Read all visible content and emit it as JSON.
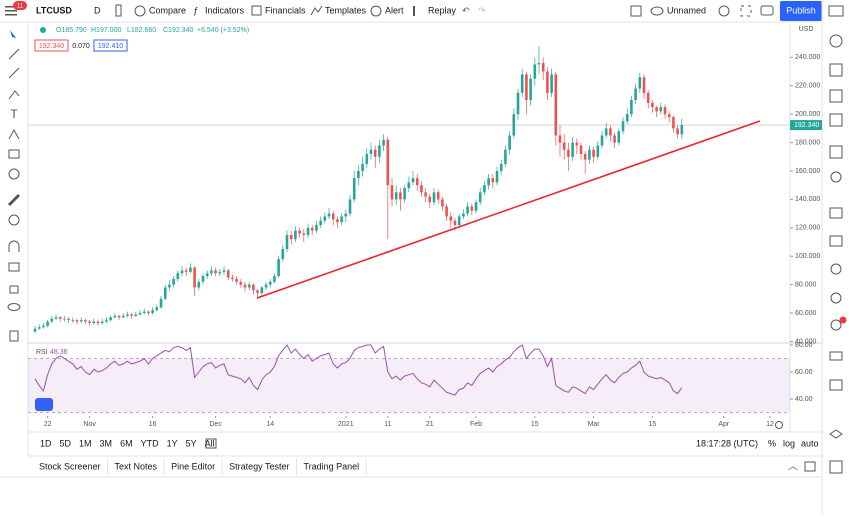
{
  "toolbar": {
    "symbol": "LTCUSD",
    "interval": "D",
    "buttons": [
      "Compare",
      "Indicators",
      "Financials",
      "Templates",
      "Alert",
      "Replay"
    ],
    "layout": "Unnamed",
    "publish": "Publish",
    "badge": "11"
  },
  "chart_data": {
    "type": "candlestick",
    "currency": "USD",
    "legend": {
      "open": "O185.790",
      "high": "H197.000",
      "low": "L182.660",
      "close": "C192.340",
      "change": "+6.540 (+3.52%)"
    },
    "quote": {
      "bid": "192.340",
      "spread": "0.070",
      "ask": "192.410"
    },
    "price_label": "192.340",
    "up_color": "#26a69a",
    "down_color": "#ef5350",
    "xlim": [
      -1.67,
      179.76
    ],
    "xticks": [
      {
        "value": 3,
        "label": "22"
      },
      {
        "value": 13,
        "label": "Nov"
      },
      {
        "value": 28,
        "label": "16"
      },
      {
        "value": 43,
        "label": "Dec"
      },
      {
        "value": 56,
        "label": "14"
      },
      {
        "value": 74,
        "label": "2021"
      },
      {
        "value": 84,
        "label": "11"
      },
      {
        "value": 94,
        "label": "21"
      },
      {
        "value": 105,
        "label": "Feb"
      },
      {
        "value": 119,
        "label": "15"
      },
      {
        "value": 133,
        "label": "Mar"
      },
      {
        "value": 147,
        "label": "15"
      },
      {
        "value": 164,
        "label": "Apr"
      },
      {
        "value": 175,
        "label": "12"
      }
    ],
    "ylim": [
      38.9,
      264.9
    ],
    "yticks": [
      {
        "value": 40,
        "label": "40.000"
      },
      {
        "value": 60,
        "label": "60.000"
      },
      {
        "value": 80,
        "label": "80.000"
      },
      {
        "value": 100,
        "label": "100.000"
      },
      {
        "value": 120,
        "label": "120.000"
      },
      {
        "value": 140,
        "label": "140.000"
      },
      {
        "value": 160,
        "label": "160.000"
      },
      {
        "value": 180,
        "label": "180.000"
      },
      {
        "value": 200,
        "label": "200.000"
      },
      {
        "value": 220,
        "label": "220.000"
      },
      {
        "value": 240,
        "label": "240.000"
      }
    ],
    "ohlc": [
      [
        47,
        51,
        46,
        49
      ],
      [
        49,
        52,
        48,
        50
      ],
      [
        50,
        53,
        49,
        51
      ],
      [
        51,
        55,
        50,
        54
      ],
      [
        54,
        58,
        53,
        56
      ],
      [
        56,
        59,
        55,
        57
      ],
      [
        57,
        58,
        54,
        56
      ],
      [
        56,
        58,
        54,
        56
      ],
      [
        56,
        57,
        53,
        55
      ],
      [
        55,
        57,
        53,
        55
      ],
      [
        55,
        56,
        52,
        54
      ],
      [
        54,
        57,
        53,
        55
      ],
      [
        55,
        56,
        52,
        54
      ],
      [
        54,
        55,
        51,
        53
      ],
      [
        53,
        56,
        52,
        54
      ],
      [
        54,
        55,
        51,
        53
      ],
      [
        53,
        56,
        52,
        54
      ],
      [
        54,
        57,
        53,
        55
      ],
      [
        55,
        58,
        54,
        57
      ],
      [
        57,
        60,
        56,
        58
      ],
      [
        58,
        59,
        55,
        57
      ],
      [
        57,
        60,
        56,
        58
      ],
      [
        58,
        61,
        57,
        59
      ],
      [
        59,
        60,
        56,
        58
      ],
      [
        58,
        61,
        57,
        59
      ],
      [
        59,
        62,
        58,
        60
      ],
      [
        60,
        63,
        59,
        61
      ],
      [
        61,
        62,
        58,
        60
      ],
      [
        60,
        64,
        59,
        62
      ],
      [
        62,
        66,
        61,
        64
      ],
      [
        64,
        72,
        63,
        70
      ],
      [
        70,
        80,
        69,
        78
      ],
      [
        78,
        83,
        76,
        80
      ],
      [
        80,
        86,
        78,
        84
      ],
      [
        84,
        90,
        82,
        88
      ],
      [
        88,
        93,
        86,
        90
      ],
      [
        90,
        92,
        86,
        89
      ],
      [
        89,
        95,
        88,
        92
      ],
      [
        92,
        93,
        72,
        78
      ],
      [
        78,
        84,
        76,
        82
      ],
      [
        82,
        88,
        80,
        86
      ],
      [
        86,
        90,
        84,
        88
      ],
      [
        88,
        93,
        86,
        90
      ],
      [
        90,
        92,
        86,
        88
      ],
      [
        88,
        91,
        86,
        89
      ],
      [
        89,
        93,
        87,
        90
      ],
      [
        90,
        91,
        83,
        85
      ],
      [
        85,
        87,
        82,
        84
      ],
      [
        84,
        86,
        80,
        82
      ],
      [
        82,
        84,
        78,
        80
      ],
      [
        80,
        82,
        75,
        78
      ],
      [
        78,
        82,
        76,
        80
      ],
      [
        80,
        81,
        73,
        76
      ],
      [
        76,
        77,
        70,
        74
      ],
      [
        74,
        79,
        72,
        78
      ],
      [
        78,
        82,
        76,
        80
      ],
      [
        80,
        84,
        78,
        82
      ],
      [
        82,
        88,
        81,
        86
      ],
      [
        86,
        100,
        85,
        98
      ],
      [
        98,
        108,
        96,
        105
      ],
      [
        105,
        118,
        103,
        115
      ],
      [
        115,
        118,
        108,
        112
      ],
      [
        112,
        121,
        110,
        118
      ],
      [
        118,
        120,
        113,
        116
      ],
      [
        116,
        119,
        110,
        115
      ],
      [
        115,
        123,
        113,
        120
      ],
      [
        120,
        122,
        115,
        118
      ],
      [
        118,
        125,
        116,
        122
      ],
      [
        122,
        128,
        120,
        125
      ],
      [
        125,
        131,
        123,
        128
      ],
      [
        128,
        134,
        126,
        130
      ],
      [
        130,
        132,
        122,
        126
      ],
      [
        126,
        128,
        120,
        124
      ],
      [
        124,
        130,
        122,
        128
      ],
      [
        128,
        133,
        124,
        130
      ],
      [
        130,
        143,
        128,
        140
      ],
      [
        140,
        160,
        138,
        155
      ],
      [
        155,
        164,
        150,
        160
      ],
      [
        160,
        170,
        156,
        165
      ],
      [
        165,
        176,
        162,
        172
      ],
      [
        172,
        180,
        168,
        175
      ],
      [
        175,
        178,
        162,
        170
      ],
      [
        170,
        182,
        166,
        178
      ],
      [
        178,
        186,
        174,
        182
      ],
      [
        182,
        184,
        112,
        150
      ],
      [
        150,
        155,
        135,
        140
      ],
      [
        140,
        150,
        136,
        145
      ],
      [
        145,
        148,
        132,
        140
      ],
      [
        140,
        150,
        138,
        148
      ],
      [
        148,
        156,
        145,
        152
      ],
      [
        152,
        160,
        150,
        155
      ],
      [
        155,
        158,
        146,
        150
      ],
      [
        150,
        153,
        142,
        145
      ],
      [
        145,
        148,
        138,
        142
      ],
      [
        142,
        144,
        134,
        138
      ],
      [
        138,
        148,
        136,
        145
      ],
      [
        145,
        147,
        137,
        140
      ],
      [
        140,
        142,
        132,
        135
      ],
      [
        135,
        137,
        125,
        128
      ],
      [
        128,
        131,
        120,
        125
      ],
      [
        125,
        127,
        118,
        122
      ],
      [
        122,
        130,
        120,
        128
      ],
      [
        128,
        133,
        126,
        130
      ],
      [
        130,
        138,
        128,
        135
      ],
      [
        135,
        137,
        129,
        132
      ],
      [
        132,
        140,
        130,
        138
      ],
      [
        138,
        148,
        136,
        145
      ],
      [
        145,
        153,
        143,
        150
      ],
      [
        150,
        158,
        147,
        155
      ],
      [
        155,
        158,
        148,
        152
      ],
      [
        152,
        163,
        150,
        160
      ],
      [
        160,
        168,
        157,
        165
      ],
      [
        165,
        178,
        163,
        175
      ],
      [
        175,
        188,
        172,
        185
      ],
      [
        185,
        204,
        183,
        200
      ],
      [
        200,
        218,
        196,
        215
      ],
      [
        215,
        232,
        212,
        228
      ],
      [
        228,
        230,
        200,
        210
      ],
      [
        210,
        228,
        206,
        225
      ],
      [
        225,
        240,
        220,
        235
      ],
      [
        235,
        248,
        228,
        236
      ],
      [
        236,
        240,
        224,
        230
      ],
      [
        230,
        233,
        210,
        215
      ],
      [
        215,
        232,
        212,
        228
      ],
      [
        228,
        230,
        178,
        185
      ],
      [
        185,
        192,
        170,
        180
      ],
      [
        180,
        186,
        168,
        175
      ],
      [
        175,
        180,
        160,
        170
      ],
      [
        170,
        184,
        167,
        180
      ],
      [
        180,
        183,
        172,
        178
      ],
      [
        178,
        180,
        168,
        172
      ],
      [
        172,
        174,
        158,
        168
      ],
      [
        168,
        178,
        165,
        175
      ],
      [
        175,
        177,
        166,
        170
      ],
      [
        170,
        181,
        168,
        178
      ],
      [
        178,
        188,
        176,
        185
      ],
      [
        185,
        194,
        183,
        190
      ],
      [
        190,
        192,
        181,
        185
      ],
      [
        185,
        187,
        176,
        180
      ],
      [
        180,
        190,
        178,
        188
      ],
      [
        188,
        198,
        186,
        195
      ],
      [
        195,
        204,
        193,
        200
      ],
      [
        200,
        213,
        198,
        210
      ],
      [
        210,
        221,
        207,
        218
      ],
      [
        218,
        229,
        215,
        226
      ],
      [
        226,
        228,
        211,
        215
      ],
      [
        215,
        217,
        204,
        208
      ],
      [
        208,
        210,
        201,
        205
      ],
      [
        205,
        206,
        198,
        202
      ],
      [
        202,
        208,
        200,
        205
      ],
      [
        205,
        207,
        197,
        200
      ],
      [
        200,
        202,
        194,
        198
      ],
      [
        198,
        199,
        187,
        190
      ],
      [
        190,
        192,
        183,
        185.8
      ],
      [
        185.79,
        197,
        182.66,
        192.34
      ]
    ],
    "trend_line": {
      "color": "#e8262b",
      "x": [
        52.9,
        172.6
      ],
      "y": [
        70.6,
        195.2
      ]
    },
    "rsi": {
      "name": "RSI",
      "color": "#9c4fb0",
      "band": [
        30,
        70
      ],
      "ylim": [
        27.4,
        81.5
      ],
      "yticks": [
        {
          "value": 40,
          "label": "40.00"
        },
        {
          "value": 60,
          "label": "60.00"
        },
        {
          "value": 80,
          "label": "80.00"
        }
      ],
      "values": [
        55,
        50,
        46,
        58,
        66,
        70,
        72,
        70,
        68,
        66,
        62,
        64,
        60,
        58,
        62,
        60,
        61,
        63,
        66,
        68,
        65,
        66,
        68,
        66,
        67,
        68,
        70,
        66,
        70,
        72,
        74,
        76,
        75,
        78,
        79,
        78,
        76,
        78,
        56,
        60,
        64,
        66,
        67,
        63,
        65,
        66,
        58,
        57,
        56,
        55,
        52,
        56,
        50,
        47,
        54,
        58,
        60,
        64,
        72,
        76,
        80,
        74,
        77,
        73,
        70,
        73,
        68,
        70,
        72,
        73,
        74,
        66,
        63,
        66,
        67,
        70,
        76,
        78,
        79,
        80,
        80,
        74,
        77,
        79,
        60,
        55,
        57,
        54,
        57,
        58,
        59,
        55,
        52,
        51,
        49,
        54,
        51,
        48,
        45,
        44,
        43,
        47,
        48,
        52,
        50,
        55,
        59,
        61,
        63,
        60,
        64,
        66,
        69,
        71,
        75,
        78,
        80,
        70,
        74,
        77,
        77,
        72,
        64,
        70,
        50,
        48,
        46,
        45,
        49,
        48,
        46,
        44,
        49,
        47,
        51,
        55,
        58,
        54,
        52,
        56,
        59,
        60,
        63,
        65,
        68,
        60,
        57,
        56,
        55,
        56,
        54,
        52,
        46,
        44,
        48.36
      ]
    }
  },
  "bottom": {
    "ranges": [
      "1D",
      "5D",
      "1M",
      "3M",
      "6M",
      "YTD",
      "1Y",
      "5Y",
      "All"
    ],
    "time": "18:17:28 (UTC)",
    "scale": [
      "%",
      "log",
      "auto"
    ]
  },
  "tabs": [
    "Stock Screener",
    "Text Notes",
    "Pine Editor",
    "Strategy Tester",
    "Trading Panel"
  ]
}
